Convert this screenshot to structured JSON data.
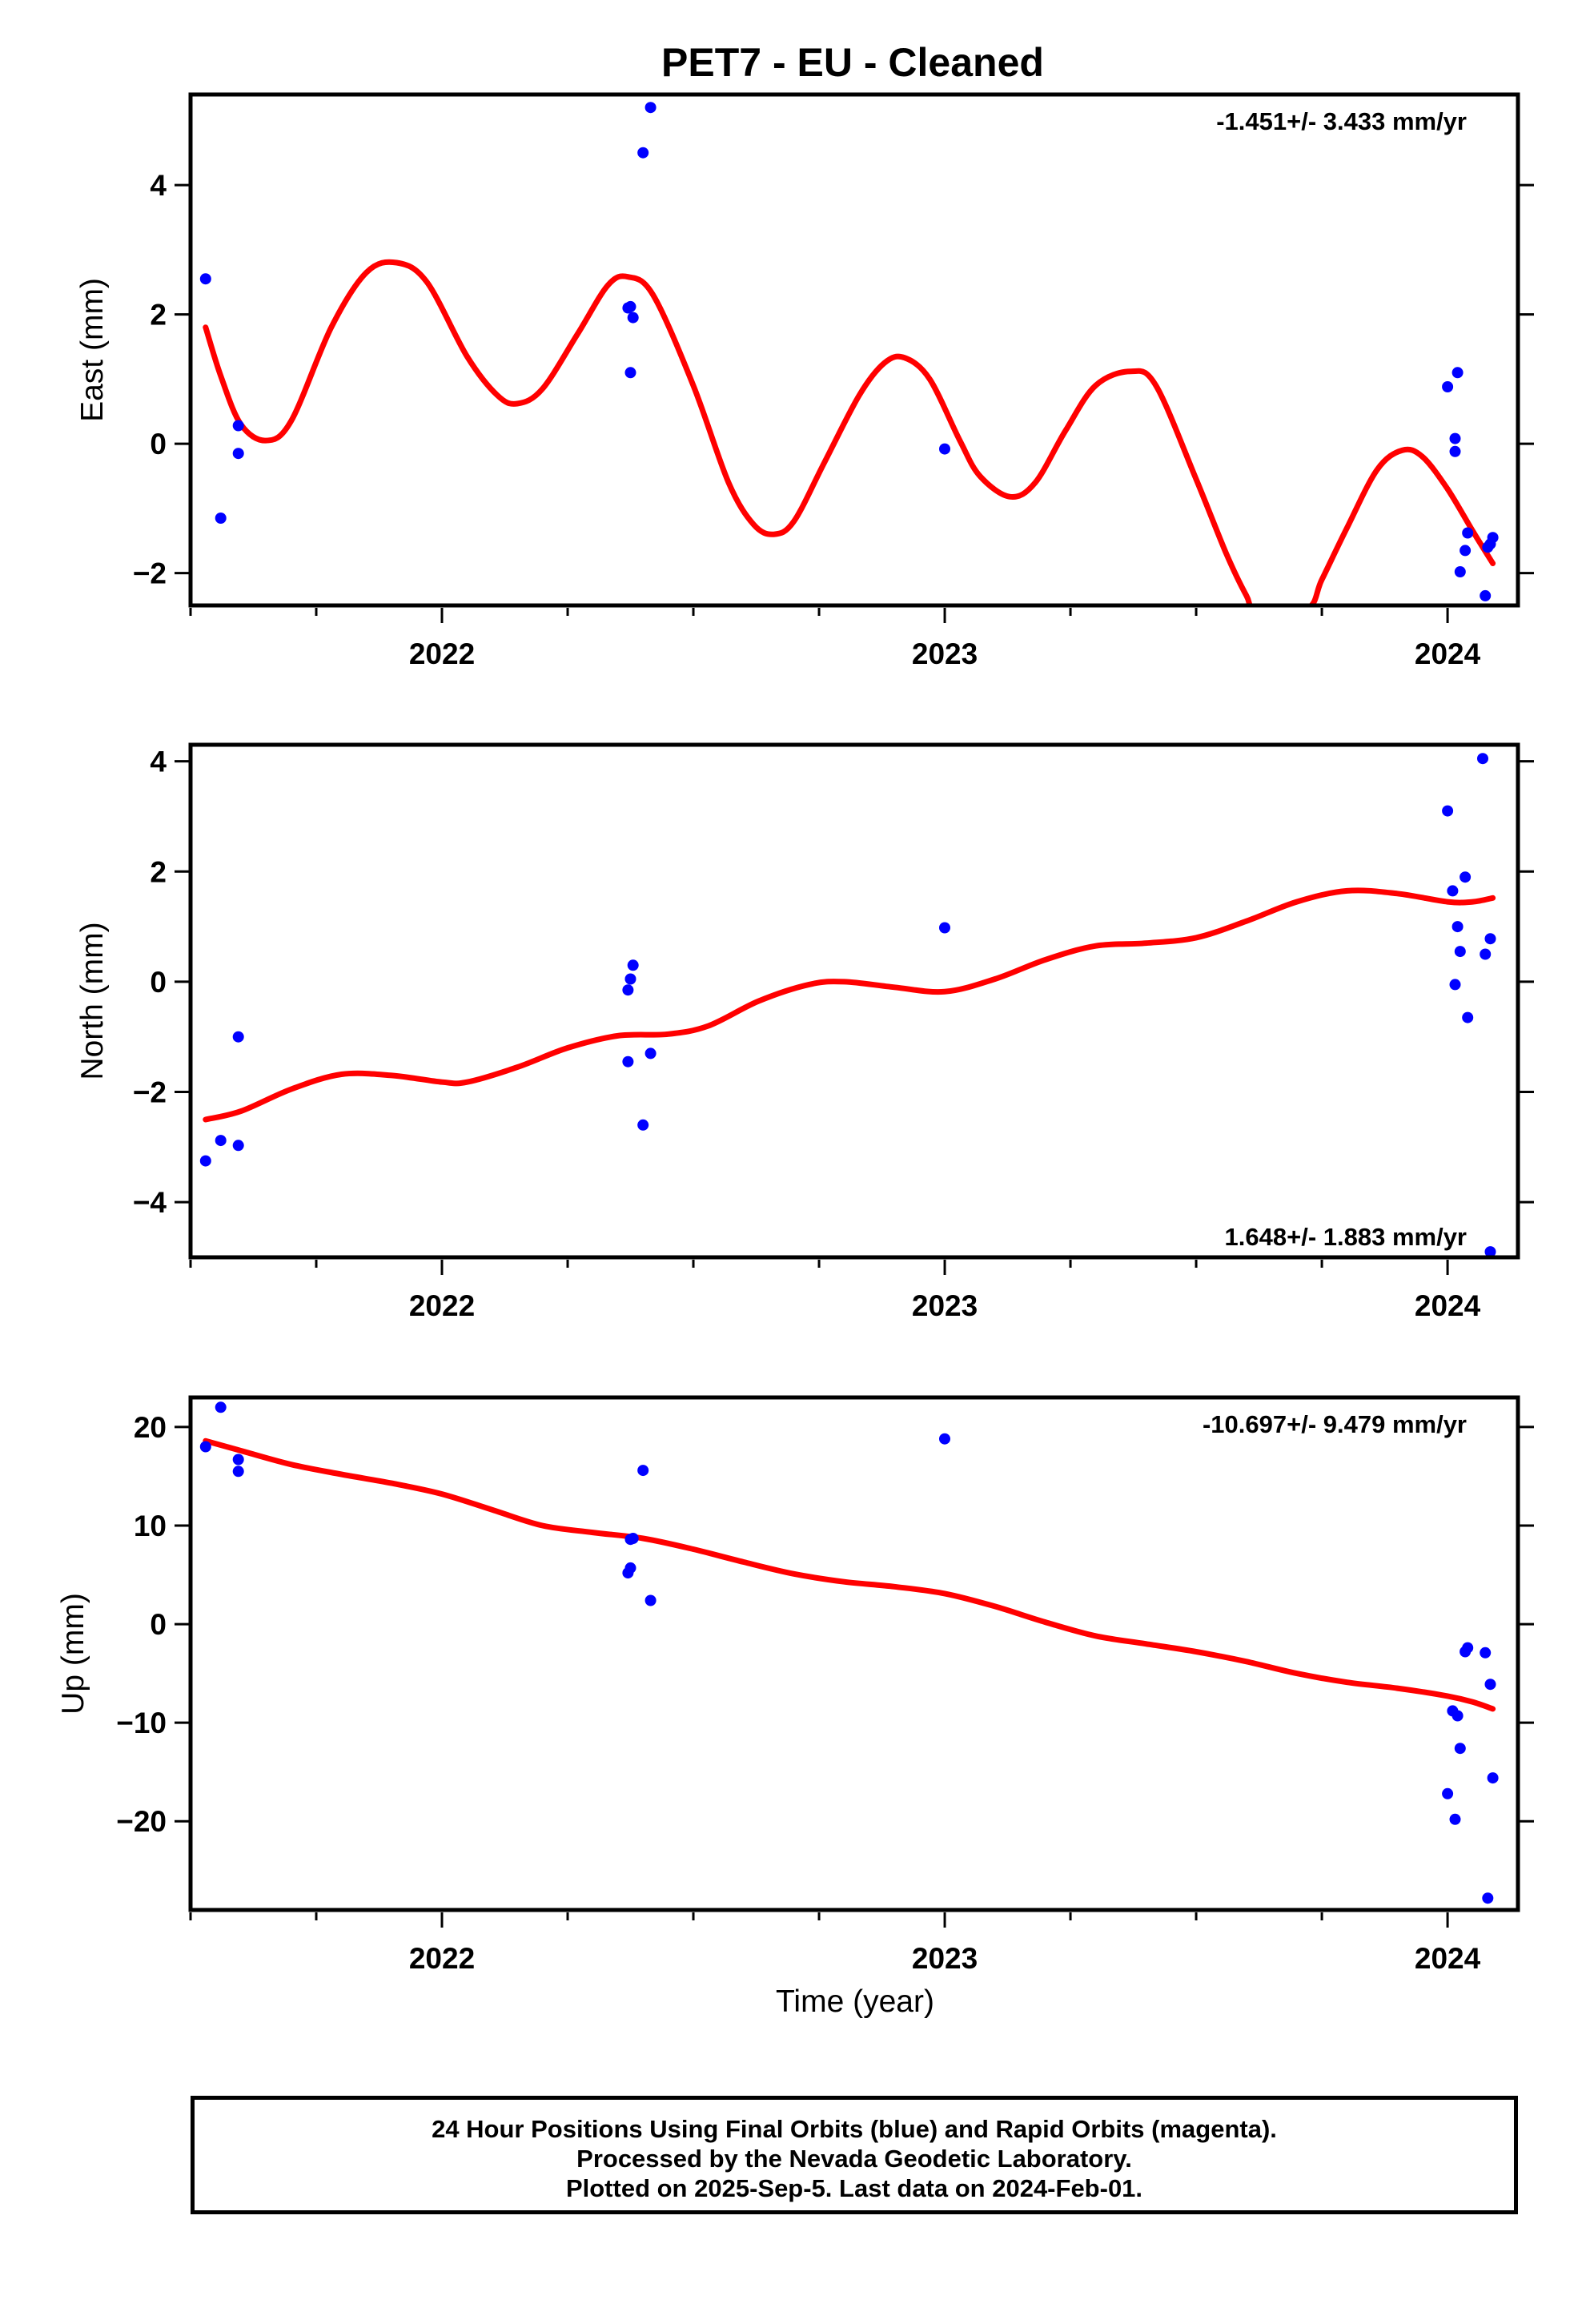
{
  "title": "PET7  - EU - Cleaned",
  "xlabel": "Time (year)",
  "footer": {
    "line1": "24 Hour Positions Using Final Orbits (blue) and Rapid Orbits (magenta).",
    "line2": "Processed by the Nevada Geodetic Laboratory.",
    "line3": "Plotted on 2025-Sep-5. Last data on 2024-Feb-01."
  },
  "colors": {
    "points": "#0000ff",
    "fit": "#ff0000",
    "axes": "#000000"
  },
  "chart_data": [
    {
      "type": "scatter",
      "name": "East",
      "ylabel": "East (mm)",
      "rate_label": "-1.451+/- 3.433 mm/yr",
      "rate_placement": "top-right",
      "xlim": [
        2021.5,
        2024.14
      ],
      "ylim": [
        -2.5,
        5.4
      ],
      "yticks": [
        -2,
        0,
        2,
        4
      ],
      "xticks": [
        2022,
        2023,
        2024
      ],
      "points": [
        [
          2021.53,
          2.55
        ],
        [
          2021.56,
          -1.15
        ],
        [
          2021.595,
          0.28
        ],
        [
          2021.595,
          -0.15
        ],
        [
          2022.37,
          2.1
        ],
        [
          2022.375,
          2.12
        ],
        [
          2022.38,
          1.95
        ],
        [
          2022.375,
          1.1
        ],
        [
          2022.4,
          4.5
        ],
        [
          2022.415,
          5.2
        ],
        [
          2023.0,
          -0.08
        ],
        [
          2024.0,
          0.88
        ],
        [
          2024.015,
          0.08
        ],
        [
          2024.015,
          -0.12
        ],
        [
          2024.02,
          1.1
        ],
        [
          2024.025,
          -1.98
        ],
        [
          2024.035,
          -1.65
        ],
        [
          2024.04,
          -1.38
        ],
        [
          2024.075,
          -2.35
        ],
        [
          2024.08,
          -1.6
        ],
        [
          2024.085,
          -1.55
        ],
        [
          2024.09,
          -1.45
        ]
      ],
      "fit": [
        [
          2021.53,
          1.8
        ],
        [
          2021.56,
          1.05
        ],
        [
          2021.6,
          0.3
        ],
        [
          2021.65,
          0.05
        ],
        [
          2021.7,
          0.35
        ],
        [
          2021.78,
          1.8
        ],
        [
          2021.85,
          2.65
        ],
        [
          2021.91,
          2.8
        ],
        [
          2021.97,
          2.5
        ],
        [
          2022.05,
          1.35
        ],
        [
          2022.11,
          0.75
        ],
        [
          2022.15,
          0.62
        ],
        [
          2022.2,
          0.85
        ],
        [
          2022.27,
          1.7
        ],
        [
          2022.33,
          2.45
        ],
        [
          2022.37,
          2.58
        ],
        [
          2022.42,
          2.3
        ],
        [
          2022.5,
          0.9
        ],
        [
          2022.57,
          -0.6
        ],
        [
          2022.62,
          -1.25
        ],
        [
          2022.66,
          -1.4
        ],
        [
          2022.7,
          -1.2
        ],
        [
          2022.76,
          -0.3
        ],
        [
          2022.83,
          0.75
        ],
        [
          2022.88,
          1.25
        ],
        [
          2022.92,
          1.33
        ],
        [
          2022.97,
          1.0
        ],
        [
          2023.03,
          0.05
        ],
        [
          2023.07,
          -0.5
        ],
        [
          2023.13,
          -0.82
        ],
        [
          2023.18,
          -0.6
        ],
        [
          2023.24,
          0.2
        ],
        [
          2023.3,
          0.9
        ],
        [
          2023.37,
          1.12
        ],
        [
          2023.42,
          0.9
        ],
        [
          2023.5,
          -0.55
        ],
        [
          2023.56,
          -1.7
        ],
        [
          2023.6,
          -2.35
        ],
        [
          2023.62,
          -2.55
        ],
        [
          2023.72,
          -2.55
        ],
        [
          2023.75,
          -2.1
        ],
        [
          2023.8,
          -1.3
        ],
        [
          2023.86,
          -0.4
        ],
        [
          2023.91,
          -0.1
        ],
        [
          2023.95,
          -0.2
        ],
        [
          2024.0,
          -0.7
        ],
        [
          2024.05,
          -1.35
        ],
        [
          2024.09,
          -1.85
        ]
      ]
    },
    {
      "type": "scatter",
      "name": "North",
      "ylabel": "North (mm)",
      "rate_label": "1.648+/- 1.883 mm/yr",
      "rate_placement": "bottom-right",
      "xlim": [
        2021.5,
        2024.14
      ],
      "ylim": [
        -5.0,
        4.3
      ],
      "yticks": [
        -4,
        -2,
        0,
        2,
        4
      ],
      "xticks": [
        2022,
        2023,
        2024
      ],
      "points": [
        [
          2021.53,
          -3.25
        ],
        [
          2021.56,
          -2.88
        ],
        [
          2021.595,
          -2.97
        ],
        [
          2021.595,
          -1.0
        ],
        [
          2022.37,
          -0.15
        ],
        [
          2022.375,
          0.05
        ],
        [
          2022.38,
          0.3
        ],
        [
          2022.37,
          -1.45
        ],
        [
          2022.4,
          -2.6
        ],
        [
          2022.415,
          -1.3
        ],
        [
          2023.0,
          0.98
        ],
        [
          2024.0,
          3.1
        ],
        [
          2024.01,
          1.65
        ],
        [
          2024.015,
          -0.05
        ],
        [
          2024.02,
          1.0
        ],
        [
          2024.025,
          0.55
        ],
        [
          2024.035,
          1.9
        ],
        [
          2024.04,
          -0.65
        ],
        [
          2024.07,
          4.05
        ],
        [
          2024.075,
          0.5
        ],
        [
          2024.085,
          0.78
        ],
        [
          2024.085,
          -4.9
        ]
      ],
      "fit": [
        [
          2021.53,
          -2.5
        ],
        [
          2021.6,
          -2.35
        ],
        [
          2021.7,
          -1.95
        ],
        [
          2021.8,
          -1.68
        ],
        [
          2021.9,
          -1.7
        ],
        [
          2022.0,
          -1.82
        ],
        [
          2022.05,
          -1.82
        ],
        [
          2022.15,
          -1.55
        ],
        [
          2022.25,
          -1.2
        ],
        [
          2022.35,
          -0.98
        ],
        [
          2022.45,
          -0.95
        ],
        [
          2022.53,
          -0.8
        ],
        [
          2022.63,
          -0.35
        ],
        [
          2022.73,
          -0.05
        ],
        [
          2022.8,
          0.0
        ],
        [
          2022.9,
          -0.1
        ],
        [
          2023.0,
          -0.18
        ],
        [
          2023.1,
          0.05
        ],
        [
          2023.2,
          0.4
        ],
        [
          2023.3,
          0.65
        ],
        [
          2023.4,
          0.7
        ],
        [
          2023.5,
          0.8
        ],
        [
          2023.6,
          1.1
        ],
        [
          2023.7,
          1.45
        ],
        [
          2023.8,
          1.65
        ],
        [
          2023.9,
          1.6
        ],
        [
          2024.0,
          1.45
        ],
        [
          2024.05,
          1.45
        ],
        [
          2024.09,
          1.52
        ]
      ]
    },
    {
      "type": "scatter",
      "name": "Up",
      "ylabel": "Up (mm)",
      "rate_label": "-10.697+/- 9.479 mm/yr",
      "rate_placement": "top-right",
      "xlim": [
        2021.5,
        2024.14
      ],
      "ylim": [
        -29,
        23
      ],
      "yticks": [
        -20,
        -10,
        0,
        10,
        20
      ],
      "xticks": [
        2022,
        2023,
        2024
      ],
      "points": [
        [
          2021.53,
          18.0
        ],
        [
          2021.56,
          22.0
        ],
        [
          2021.595,
          16.7
        ],
        [
          2021.595,
          15.5
        ],
        [
          2022.37,
          5.2
        ],
        [
          2022.375,
          5.7
        ],
        [
          2022.375,
          8.6
        ],
        [
          2022.38,
          8.7
        ],
        [
          2022.4,
          15.6
        ],
        [
          2022.415,
          2.4
        ],
        [
          2023.0,
          18.8
        ],
        [
          2024.0,
          -17.2
        ],
        [
          2024.01,
          -8.8
        ],
        [
          2024.015,
          -19.8
        ],
        [
          2024.02,
          -9.3
        ],
        [
          2024.025,
          -12.6
        ],
        [
          2024.035,
          -2.8
        ],
        [
          2024.04,
          -2.4
        ],
        [
          2024.075,
          -2.9
        ],
        [
          2024.08,
          -27.8
        ],
        [
          2024.085,
          -6.1
        ],
        [
          2024.09,
          -15.6
        ]
      ],
      "fit": [
        [
          2021.53,
          18.6
        ],
        [
          2021.6,
          17.6
        ],
        [
          2021.7,
          16.2
        ],
        [
          2021.8,
          15.2
        ],
        [
          2021.9,
          14.3
        ],
        [
          2022.0,
          13.2
        ],
        [
          2022.1,
          11.6
        ],
        [
          2022.2,
          10.0
        ],
        [
          2022.3,
          9.3
        ],
        [
          2022.4,
          8.7
        ],
        [
          2022.5,
          7.6
        ],
        [
          2022.6,
          6.3
        ],
        [
          2022.7,
          5.1
        ],
        [
          2022.8,
          4.3
        ],
        [
          2022.9,
          3.8
        ],
        [
          2023.0,
          3.1
        ],
        [
          2023.1,
          1.8
        ],
        [
          2023.2,
          0.2
        ],
        [
          2023.3,
          -1.2
        ],
        [
          2023.4,
          -2.0
        ],
        [
          2023.5,
          -2.8
        ],
        [
          2023.6,
          -3.8
        ],
        [
          2023.7,
          -5.0
        ],
        [
          2023.8,
          -5.9
        ],
        [
          2023.9,
          -6.5
        ],
        [
          2024.0,
          -7.3
        ],
        [
          2024.05,
          -7.9
        ],
        [
          2024.09,
          -8.6
        ]
      ]
    }
  ]
}
